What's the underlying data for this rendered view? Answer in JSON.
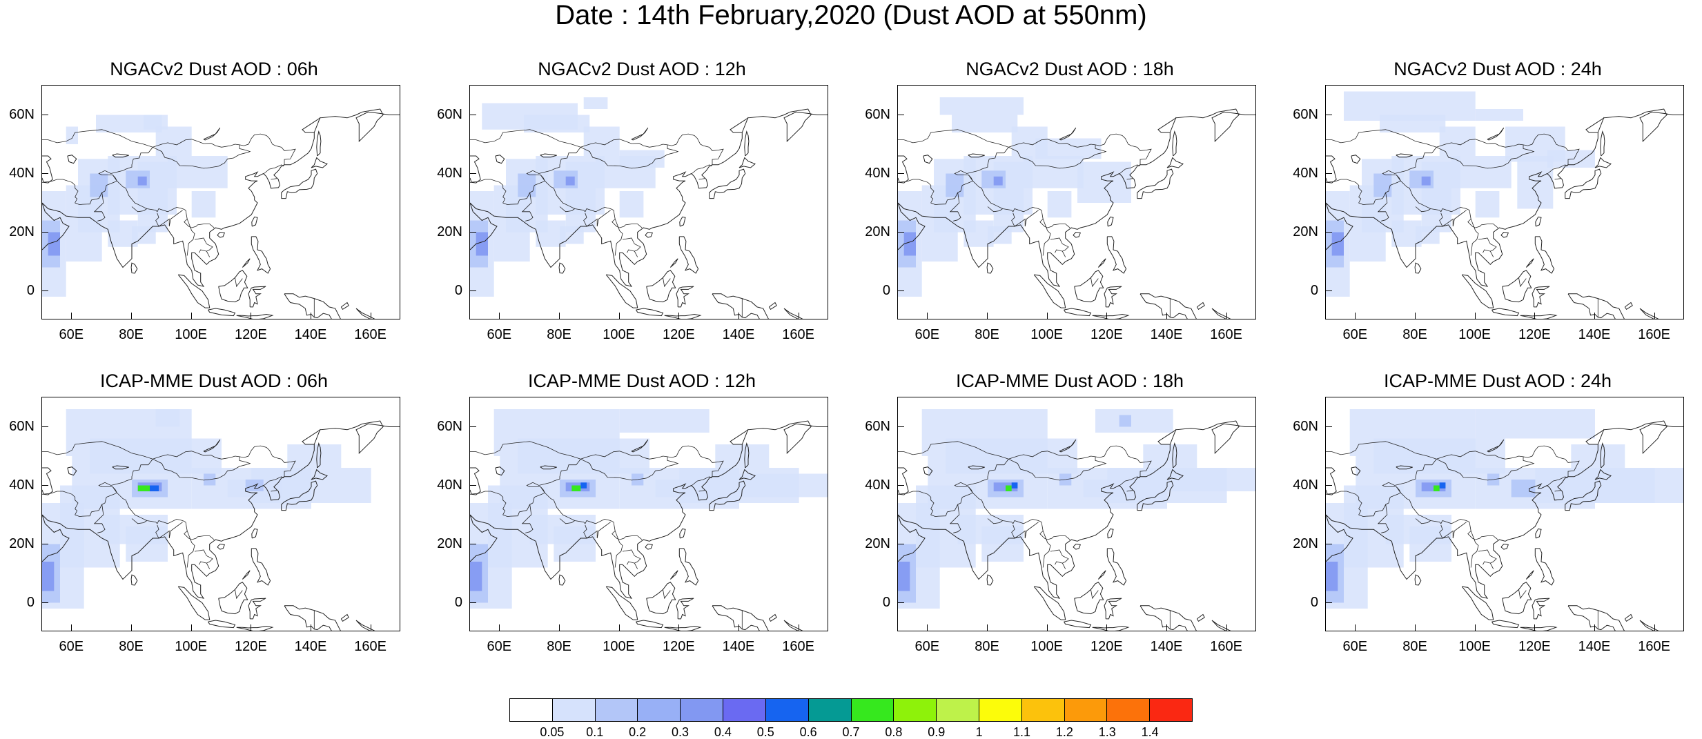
{
  "title": "Date : 14th February,2020 (Dust AOD at 550nm)",
  "axes": {
    "y_labels": [
      "60N",
      "40N",
      "20N",
      "0"
    ],
    "x_labels": [
      "60E",
      "80E",
      "100E",
      "120E",
      "140E",
      "160E"
    ]
  },
  "panels": [
    {
      "title": "NGACv2 Dust AOD : 06h",
      "model": "NGACv2",
      "hour": "06h"
    },
    {
      "title": "NGACv2 Dust AOD : 12h",
      "model": "NGACv2",
      "hour": "12h"
    },
    {
      "title": "NGACv2 Dust AOD : 18h",
      "model": "NGACv2",
      "hour": "18h"
    },
    {
      "title": "NGACv2 Dust AOD : 24h",
      "model": "NGACv2",
      "hour": "24h"
    },
    {
      "title": "ICAP-MME Dust AOD : 06h",
      "model": "ICAP-MME",
      "hour": "06h"
    },
    {
      "title": "ICAP-MME Dust AOD : 12h",
      "model": "ICAP-MME",
      "hour": "12h"
    },
    {
      "title": "ICAP-MME Dust AOD : 18h",
      "model": "ICAP-MME",
      "hour": "18h"
    },
    {
      "title": "ICAP-MME Dust AOD : 24h",
      "model": "ICAP-MME",
      "hour": "24h"
    }
  ],
  "colorbar": {
    "labels": [
      "0.05",
      "0.1",
      "0.2",
      "0.3",
      "0.4",
      "0.5",
      "0.6",
      "0.7",
      "0.8",
      "0.9",
      "1",
      "1.1",
      "1.2",
      "1.3",
      "1.4"
    ],
    "colors": [
      "#ffffff",
      "#d6e2fc",
      "#b3c6f8",
      "#98b0f6",
      "#8298f2",
      "#6a6af2",
      "#1664f0",
      "#059a94",
      "#36e81e",
      "#8ef20a",
      "#bef24a",
      "#fcfc0a",
      "#fcc20c",
      "#fc9a0a",
      "#fc720a",
      "#fa2812"
    ]
  },
  "map_colors": {
    "coast": "#222222",
    "fill_low": "#d6e2fc",
    "fill_mid": "#b3c6f8",
    "fill_high": "#8298f2",
    "core_green": "#36e81e",
    "core_blue": "#1664f0"
  }
}
